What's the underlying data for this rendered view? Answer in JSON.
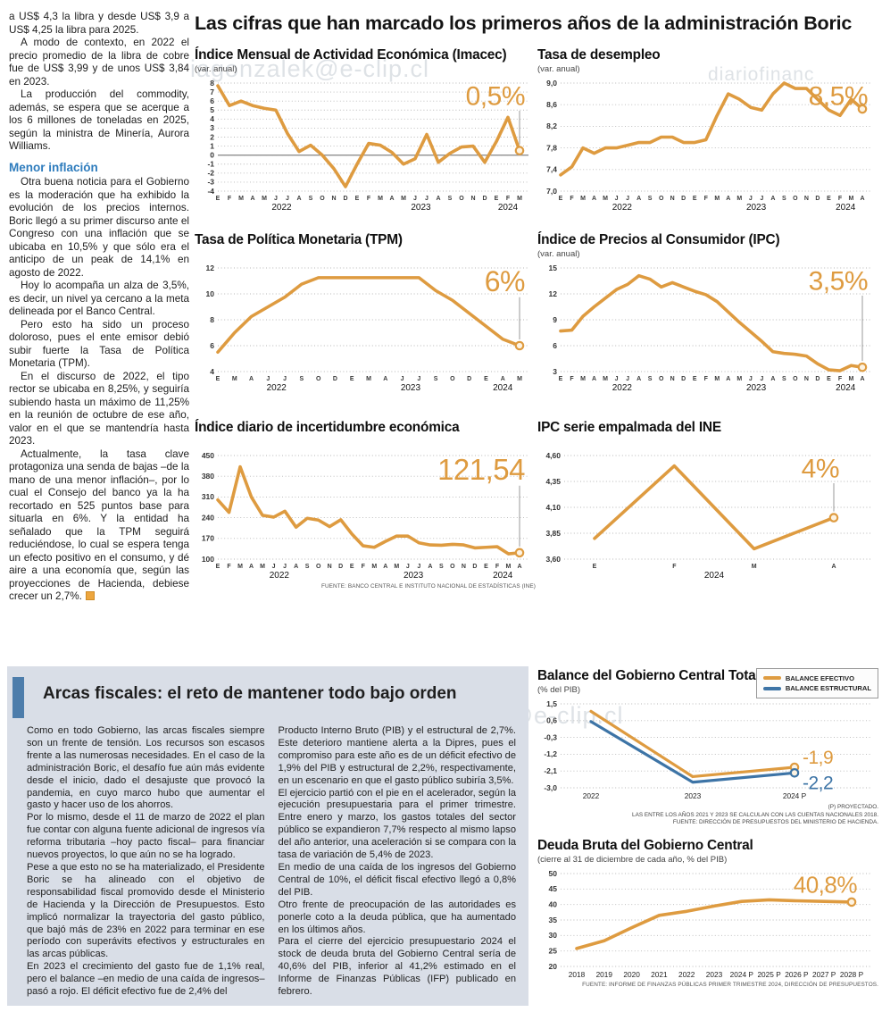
{
  "page": {
    "main_title": "Las cifras que han marcado los primeros años de la administración Boric",
    "watermarks": [
      "iagonzalek@e-clip.cl",
      "diariofinanc",
      "ero iagonzalek@e-clip.cl"
    ]
  },
  "left_article": {
    "subhead": "Menor inflación",
    "paragraphs": [
      "a US$ 4,3 la libra y desde US$ 3,9 a US$ 4,25 la libra para 2025.",
      "A modo de contexto, en 2022 el precio promedio de la libra de cobre fue de US$ 3,99 y de unos US$ 3,84 en 2023.",
      "La producción del commodity, además, se espera que se acerque a los 6 millones de toneladas en 2025, según la ministra de Minería, Aurora Williams.",
      "Otra buena noticia para el Gobierno es la moderación que ha exhibido la evolución de los precios internos. Boric llegó a su primer discurso ante el Congreso con una inflación que se ubicaba en 10,5% y que sólo era el anticipo de un peak de 14,1% en agosto de 2022.",
      "Hoy lo acompaña un alza de 3,5%, es decir, un nivel ya cercano a la meta delineada por el Banco Central.",
      "Pero esto ha sido un proceso doloroso, pues el ente emisor debió subir fuerte la Tasa de Política Monetaria (TPM).",
      "En el discurso de 2022, el tipo rector se ubicaba en 8,25%, y seguiría subiendo hasta un máximo de 11,25% en la reunión de octubre de ese año, valor en el que se mantendría hasta 2023.",
      "Actualmente, la tasa clave protagoniza una senda de bajas –de la mano de una menor inflación–, por lo cual el Consejo del banco ya la ha recortado en 525 puntos base para situarla en 6%. Y la entidad ha señalado que la TPM seguirá reduciéndose, lo cual se espera tenga un efecto positivo en el consumo, y dé aire a una economía que, según las proyecciones de Hacienda, debiese crecer un 2,7%."
    ]
  },
  "bottom": {
    "headline": "Arcas fiscales: el reto de mantener todo bajo orden",
    "col1": [
      "Como en todo Gobierno, las arcas fiscales siempre son un frente de tensión. Los recursos son escasos frente a las numerosas necesidades. En el caso de la administración Boric, el desafío fue aún más evidente desde el inicio, dado el desajuste que provocó la pandemia, en cuyo marco hubo que aumentar el gasto y hacer uso de los ahorros.",
      "Por lo mismo, desde el 11 de marzo de 2022 el plan fue contar con alguna fuente adicional de ingresos vía reforma tributaria –hoy pacto fiscal– para financiar nuevos proyectos, lo que aún no se ha logrado.",
      "Pese a que esto no se ha materializado, el Presidente Boric se ha alineado con el objetivo de responsabilidad fiscal promovido desde el Ministerio de Hacienda y la Dirección de Presupuestos. Esto implicó normalizar la trayectoria del gasto público, que bajó más de 23% en 2022 para terminar en ese período con superávits efectivos y estructurales en las arcas públicas.",
      "En 2023 el crecimiento del gasto fue de 1,1% real, pero el balance –en medio de una caída de ingresos–  pasó a rojo. El déficit efectivo fue de 2,4% del"
    ],
    "col2": [
      "Producto Interno Bruto (PIB) y el estructural de 2,7%. Este deterioro mantiene alerta a la Dipres, pues el compromiso para este año es de un déficit efectivo de 1,9% del PIB y estructural de 2,2%, respectivamente, en un escenario en que el gasto público subiría 3,5%.",
      "El ejercicio partió con el pie en el acelerador, según la ejecución presupuestaria para el primer trimestre. Entre enero y marzo, los gastos totales del sector público se expandieron 7,7% respecto al mismo lapso del año anterior, una aceleración si se compara con la tasa de variación de 5,4% de 2023.",
      "En medio de una caída de los ingresos del Gobierno Central de 10%, el déficit fiscal efectivo llegó a 0,8% del PIB.",
      "Otro frente de preocupación de las autoridades es ponerle coto a la deuda pública, que ha aumentado en los últimos años.",
      "Para el cierre del ejercicio presupuestario 2024 el stock de deuda bruta del Gobierno Central sería de 40,6% del PIB, inferior al 41,2% estimado en el Informe de Finanzas Públicas (IFP) publicado en febrero."
    ]
  },
  "chart_data": [
    {
      "key": "imacec",
      "type": "line",
      "title": "Índice Mensual de Actividad Económica (Imacec)",
      "subtitle": "(var. anual)",
      "color": "#de9b40",
      "ylim": [
        -4,
        8
      ],
      "zero_line": true,
      "end_label": "0,5%",
      "big_size": 30,
      "y_ticks": [
        {
          "v": 8,
          "t": "8"
        },
        {
          "v": 7,
          "t": "7"
        },
        {
          "v": 6,
          "t": "6"
        },
        {
          "v": 5,
          "t": "5"
        },
        {
          "v": 4,
          "t": "4"
        },
        {
          "v": 3,
          "t": "3"
        },
        {
          "v": 2,
          "t": "2"
        },
        {
          "v": 1,
          "t": "1"
        },
        {
          "v": 0,
          "t": "0"
        },
        {
          "v": -1,
          "t": "-1"
        },
        {
          "v": -2,
          "t": "-2"
        },
        {
          "v": -3,
          "t": "-3"
        },
        {
          "v": -4,
          "t": "-4"
        }
      ],
      "x_labels": [
        "E",
        "F",
        "M",
        "A",
        "M",
        "J",
        "J",
        "A",
        "S",
        "O",
        "N",
        "D",
        "E",
        "F",
        "M",
        "A",
        "M",
        "J",
        "J",
        "A",
        "S",
        "O",
        "N",
        "D",
        "E",
        "F",
        "M"
      ],
      "year_ticks": [
        {
          "t": "2022",
          "at": 5.5
        },
        {
          "t": "2023",
          "at": 17.5
        },
        {
          "t": "2024",
          "at": 25
        }
      ],
      "values": [
        7.7,
        5.5,
        6.0,
        5.5,
        5.2,
        5.0,
        2.4,
        0.4,
        1.1,
        0.0,
        -1.5,
        -3.5,
        -1.0,
        1.3,
        1.1,
        0.3,
        -1.0,
        -0.4,
        2.3,
        -0.8,
        0.2,
        0.9,
        1.0,
        -0.8,
        1.5,
        4.2,
        0.5
      ]
    },
    {
      "key": "desempleo",
      "type": "line",
      "title": "Tasa de desempleo",
      "subtitle": "(var. anual)",
      "color": "#de9b40",
      "ylim": [
        7.0,
        9.0
      ],
      "end_label": "8,5%",
      "big_size": 30,
      "y_ticks": [
        {
          "v": 9.0,
          "t": "9,0"
        },
        {
          "v": 8.6,
          "t": "8,6"
        },
        {
          "v": 8.2,
          "t": "8,2"
        },
        {
          "v": 7.8,
          "t": "7,8"
        },
        {
          "v": 7.4,
          "t": "7,4"
        },
        {
          "v": 7.0,
          "t": "7,0"
        }
      ],
      "x_labels": [
        "E",
        "F",
        "M",
        "A",
        "M",
        "J",
        "J",
        "A",
        "S",
        "O",
        "N",
        "D",
        "E",
        "F",
        "M",
        "A",
        "M",
        "J",
        "J",
        "A",
        "S",
        "O",
        "N",
        "D",
        "E",
        "F",
        "M",
        "A"
      ],
      "year_ticks": [
        {
          "t": "2022",
          "at": 5.5
        },
        {
          "t": "2023",
          "at": 17.5
        },
        {
          "t": "2024",
          "at": 25.5
        }
      ],
      "values": [
        7.3,
        7.45,
        7.8,
        7.7,
        7.8,
        7.8,
        7.85,
        7.9,
        7.9,
        8.0,
        8.0,
        7.9,
        7.9,
        7.95,
        8.4,
        8.8,
        8.7,
        8.55,
        8.5,
        8.8,
        9.0,
        8.9,
        8.9,
        8.7,
        8.5,
        8.4,
        8.7,
        8.52
      ]
    },
    {
      "key": "tpm",
      "type": "line",
      "title": "Tasa de Política Monetaria (TPM)",
      "color": "#de9b40",
      "ylim": [
        4,
        12
      ],
      "end_label": "6%",
      "big_size": 32,
      "y_ticks": [
        {
          "v": 12,
          "t": "12"
        },
        {
          "v": 10,
          "t": "10"
        },
        {
          "v": 8,
          "t": "8"
        },
        {
          "v": 6,
          "t": "6"
        },
        {
          "v": 4,
          "t": "4"
        }
      ],
      "x_labels": [
        "E",
        "M",
        "A",
        "J",
        "J",
        "S",
        "O",
        "D",
        "E",
        "M",
        "A",
        "J",
        "J",
        "S",
        "O",
        "D",
        "E",
        "A",
        "M"
      ],
      "year_ticks": [
        {
          "t": "2022",
          "at": 3.5
        },
        {
          "t": "2023",
          "at": 11.5
        },
        {
          "t": "2024",
          "at": 17
        }
      ],
      "values": [
        5.5,
        7.0,
        8.25,
        9.0,
        9.75,
        10.75,
        11.25,
        11.25,
        11.25,
        11.25,
        11.25,
        11.25,
        11.25,
        10.25,
        9.5,
        8.5,
        7.5,
        6.5,
        6.0
      ]
    },
    {
      "key": "ipc",
      "type": "line",
      "title": "Índice de Precios al Consumidor (IPC)",
      "subtitle": "(var. anual)",
      "color": "#de9b40",
      "ylim": [
        3,
        15
      ],
      "end_label": "3,5%",
      "big_size": 30,
      "y_ticks": [
        {
          "v": 15,
          "t": "15"
        },
        {
          "v": 12,
          "t": "12"
        },
        {
          "v": 9,
          "t": "9"
        },
        {
          "v": 6,
          "t": "6"
        },
        {
          "v": 3,
          "t": "3"
        }
      ],
      "x_labels": [
        "E",
        "F",
        "M",
        "A",
        "M",
        "J",
        "J",
        "A",
        "S",
        "O",
        "N",
        "D",
        "E",
        "F",
        "M",
        "A",
        "M",
        "J",
        "J",
        "A",
        "S",
        "O",
        "N",
        "D",
        "E",
        "F",
        "M",
        "A"
      ],
      "year_ticks": [
        {
          "t": "2022",
          "at": 5.5
        },
        {
          "t": "2023",
          "at": 17.5
        },
        {
          "t": "2024",
          "at": 25.5
        }
      ],
      "values": [
        7.7,
        7.8,
        9.4,
        10.5,
        11.5,
        12.5,
        13.1,
        14.1,
        13.7,
        12.8,
        13.3,
        12.8,
        12.3,
        11.9,
        11.1,
        9.9,
        8.7,
        7.6,
        6.5,
        5.3,
        5.1,
        5.0,
        4.8,
        3.9,
        3.2,
        3.1,
        3.7,
        3.5
      ]
    },
    {
      "key": "incertidumbre",
      "type": "line",
      "title": "Índice diario de incertidumbre económica",
      "color": "#de9b40",
      "ylim": [
        100,
        450
      ],
      "end_label": "121,54",
      "big_size": 33,
      "source": "FUENTE: BANCO CENTRAL E INSTITUTO NACIONAL DE ESTADÍSTICAS (INE)",
      "y_ticks": [
        {
          "v": 450,
          "t": "450"
        },
        {
          "v": 380,
          "t": "380"
        },
        {
          "v": 310,
          "t": "310"
        },
        {
          "v": 240,
          "t": "240"
        },
        {
          "v": 170,
          "t": "170"
        },
        {
          "v": 100,
          "t": "100"
        }
      ],
      "x_labels": [
        "E",
        "F",
        "M",
        "A",
        "M",
        "J",
        "J",
        "A",
        "S",
        "O",
        "N",
        "D",
        "E",
        "F",
        "M",
        "A",
        "M",
        "J",
        "J",
        "A",
        "S",
        "O",
        "N",
        "D",
        "E",
        "F",
        "M",
        "A"
      ],
      "year_ticks": [
        {
          "t": "2022",
          "at": 5.5
        },
        {
          "t": "2023",
          "at": 17.5
        },
        {
          "t": "2024",
          "at": 25.5
        }
      ],
      "values": [
        300,
        258,
        412,
        310,
        248,
        242,
        262,
        208,
        238,
        232,
        210,
        233,
        185,
        145,
        140,
        160,
        178,
        178,
        155,
        148,
        147,
        150,
        148,
        138,
        140,
        142,
        118,
        121.54
      ]
    },
    {
      "key": "ipc_ine",
      "type": "line",
      "title": "IPC serie empalmada del INE",
      "color": "#de9b40",
      "ylim": [
        3.6,
        4.6
      ],
      "end_label": "4%",
      "big_size": 30,
      "pads": {
        "l": 30,
        "r": 16,
        "t": 8,
        "b": 26
      },
      "x_inset": [
        34,
        30
      ],
      "y_ticks": [
        {
          "v": 4.6,
          "t": "4,60"
        },
        {
          "v": 4.35,
          "t": "4,35"
        },
        {
          "v": 4.1,
          "t": "4,10"
        },
        {
          "v": 3.85,
          "t": "3,85"
        },
        {
          "v": 3.6,
          "t": "3,60"
        }
      ],
      "x_labels": [
        "E",
        "F",
        "M",
        "A"
      ],
      "year_ticks": [
        {
          "t": "2024",
          "at": 1.5
        }
      ],
      "values": [
        3.8,
        4.5,
        3.7,
        4.0
      ]
    },
    {
      "key": "balance",
      "type": "line",
      "title": "Balance del Gobierno Central Total",
      "subtitle": "(% del PIB)",
      "color": "#de9b40",
      "ylim": [
        -3.0,
        1.5
      ],
      "x_style": "years",
      "pads": {
        "l": 26,
        "r": 64,
        "t": 8,
        "b": 16
      },
      "x_inset": [
        34,
        26
      ],
      "y_ticks": [
        {
          "v": 1.5,
          "t": "1,5"
        },
        {
          "v": 0.6,
          "t": "0,6"
        },
        {
          "v": -0.3,
          "t": "-0,3"
        },
        {
          "v": -1.2,
          "t": "-1,2"
        },
        {
          "v": -2.1,
          "t": "-2,1"
        },
        {
          "v": -3.0,
          "t": "-3,0"
        }
      ],
      "x_labels": [
        "2022",
        "2023",
        "2024 P"
      ],
      "series": [
        {
          "name": "BALANCE EFECTIVO",
          "color": "#de9b40",
          "values": [
            1.1,
            -2.4,
            -1.9
          ],
          "end_label": "-1,9",
          "label_dy": -4
        },
        {
          "name": "BALANCE ESTRUCTURAL",
          "color": "#3d74a6",
          "values": [
            0.55,
            -2.7,
            -2.2
          ],
          "end_label": "-2,2",
          "label_dy": 18
        }
      ],
      "footnotes": [
        "(P) PROYECTADO.",
        "LAS ENTRE LOS AÑOS 2021 Y 2023 SE CALCULAN  CON LAS CUENTAS NACIONALES 2018.",
        "FUENTE: DIRECCIÓN DE PRESUPUESTOS DEL MINISTERIO DE HACIENDA."
      ]
    },
    {
      "key": "deuda",
      "type": "line",
      "title": "Deuda Bruta del Gobierno Central",
      "subtitle": "(cierre al 31 de diciembre de cada año, % del PIB)",
      "color": "#de9b40",
      "ylim": [
        20,
        50
      ],
      "end_label": "40,8%",
      "big_size": 26,
      "connector": false,
      "x_style": "years",
      "pads": {
        "l": 26,
        "r": 16,
        "t": 8,
        "b": 16
      },
      "x_inset": [
        18,
        10
      ],
      "source": "FUENTE: INFORME DE FINANZAS PÚBLICAS PRIMER TRIMESTRE 2024, DIRECCIÓN DE PRESUPUESTOS.",
      "y_ticks": [
        {
          "v": 50,
          "t": "50"
        },
        {
          "v": 45,
          "t": "45"
        },
        {
          "v": 40,
          "t": "40"
        },
        {
          "v": 35,
          "t": "35"
        },
        {
          "v": 30,
          "t": "30"
        },
        {
          "v": 25,
          "t": "25"
        },
        {
          "v": 20,
          "t": "20"
        }
      ],
      "x_labels": [
        "2018",
        "2019",
        "2020",
        "2021",
        "2022",
        "2023",
        "2024 P",
        "2025 P",
        "2026 P",
        "2027 P",
        "2028 P"
      ],
      "values": [
        25.8,
        28.3,
        32.5,
        36.5,
        37.8,
        39.5,
        41.0,
        41.5,
        41.2,
        41.0,
        40.8
      ]
    }
  ]
}
